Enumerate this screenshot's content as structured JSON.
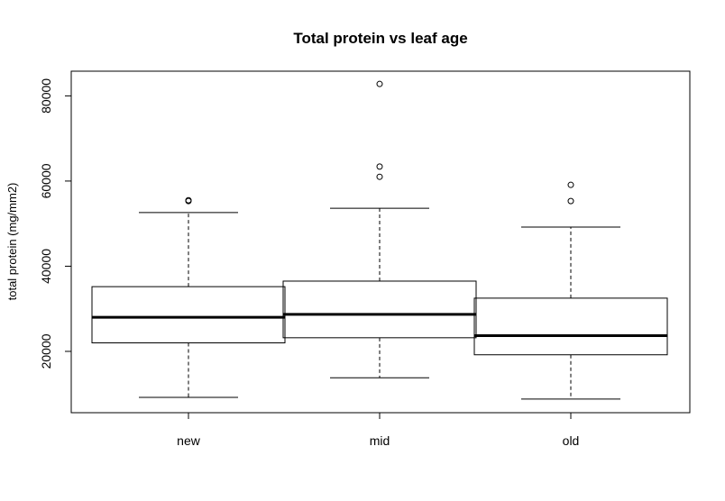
{
  "chart_data": {
    "type": "boxplot",
    "title": "Total protein vs leaf age",
    "xlabel": "",
    "ylabel": "total protein (mg/mm2)",
    "categories": [
      "new",
      "mid",
      "old"
    ],
    "ylim": [
      5600,
      85800
    ],
    "yticks": [
      20000,
      40000,
      60000,
      80000
    ],
    "boxes": [
      {
        "name": "new",
        "whisker_low": 9200,
        "q1": 22000,
        "median": 28000,
        "q3": 35200,
        "whisker_high": 52600,
        "outliers": [
          55300,
          55500
        ]
      },
      {
        "name": "mid",
        "whisker_low": 13800,
        "q1": 23200,
        "median": 28700,
        "q3": 36500,
        "whisker_high": 53600,
        "outliers": [
          61000,
          63400,
          82800
        ]
      },
      {
        "name": "old",
        "whisker_low": 8800,
        "q1": 19200,
        "median": 23700,
        "q3": 32500,
        "whisker_high": 49200,
        "outliers": [
          55300,
          59100
        ]
      }
    ],
    "grid": false,
    "legend": "none"
  }
}
